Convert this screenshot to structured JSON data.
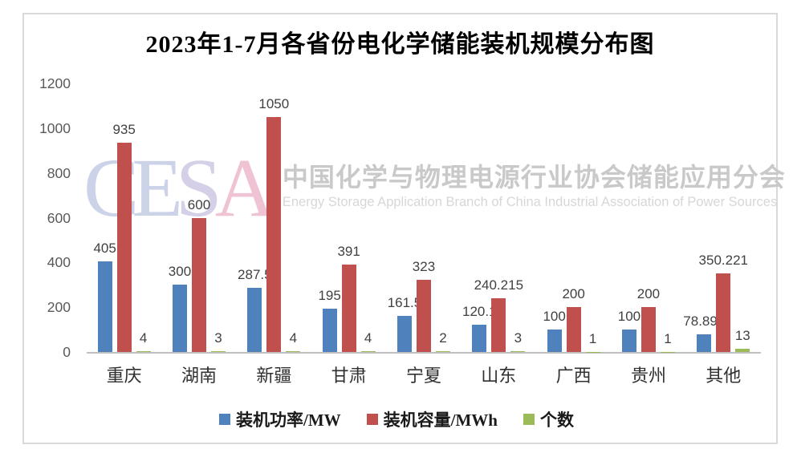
{
  "title": "2023年1-7月各省份电化学储能装机规模分布图",
  "watermark": {
    "cesa_letters": [
      {
        "char": "C",
        "color": "#ccd3e9"
      },
      {
        "char": "E",
        "color": "#ccd3e9"
      },
      {
        "char": "S",
        "color": "#d5d0e8"
      },
      {
        "char": "A",
        "color": "#f0c3d4"
      }
    ],
    "org_cn": "中国化学与物理电源行业协会储能应用分会",
    "org_en": "Energy Storage Application Branch of China Industrial Association of Power Sources"
  },
  "chart_data": {
    "type": "bar",
    "title": "2023年1-7月各省份电化学储能装机规模分布图",
    "categories": [
      "重庆",
      "湖南",
      "新疆",
      "甘肃",
      "宁夏",
      "山东",
      "广西",
      "贵州",
      "其他"
    ],
    "series": [
      {
        "name": "装机功率/MW",
        "color": "#4F81BD",
        "values": [
          405,
          300,
          287.5,
          195,
          161.5,
          120.1,
          100,
          100,
          78.896
        ],
        "labels": [
          "405",
          "300",
          "287.5",
          "195",
          "161.5",
          "120.1",
          "100",
          "100",
          "78.896"
        ]
      },
      {
        "name": "装机容量/MWh",
        "color": "#C0504D",
        "values": [
          935,
          600,
          1050,
          391,
          323,
          240.215,
          200,
          200,
          350.221
        ],
        "labels": [
          "935",
          "600",
          "1050",
          "391",
          "323",
          "240.215",
          "200",
          "200",
          "350.221"
        ]
      },
      {
        "name": "个数",
        "color": "#9BBB59",
        "values": [
          4,
          3,
          4,
          4,
          2,
          3,
          1,
          1,
          13
        ],
        "labels": [
          "4",
          "3",
          "4",
          "4",
          "2",
          "3",
          "1",
          "1",
          "13"
        ]
      }
    ],
    "y_axis": {
      "min": 0,
      "max": 1200,
      "step": 200,
      "ticks": [
        "0",
        "200",
        "400",
        "600",
        "800",
        "1000",
        "1200"
      ]
    },
    "xlabel": "",
    "ylabel": "",
    "grid": false,
    "legend_position": "bottom"
  },
  "colors": {
    "axis_line": "#BFBFBF",
    "y_tick_label": "#595959",
    "data_label": "#404040",
    "category_label": "#303030",
    "frame_border": "#D9D9D9",
    "background": "#FFFFFF"
  }
}
